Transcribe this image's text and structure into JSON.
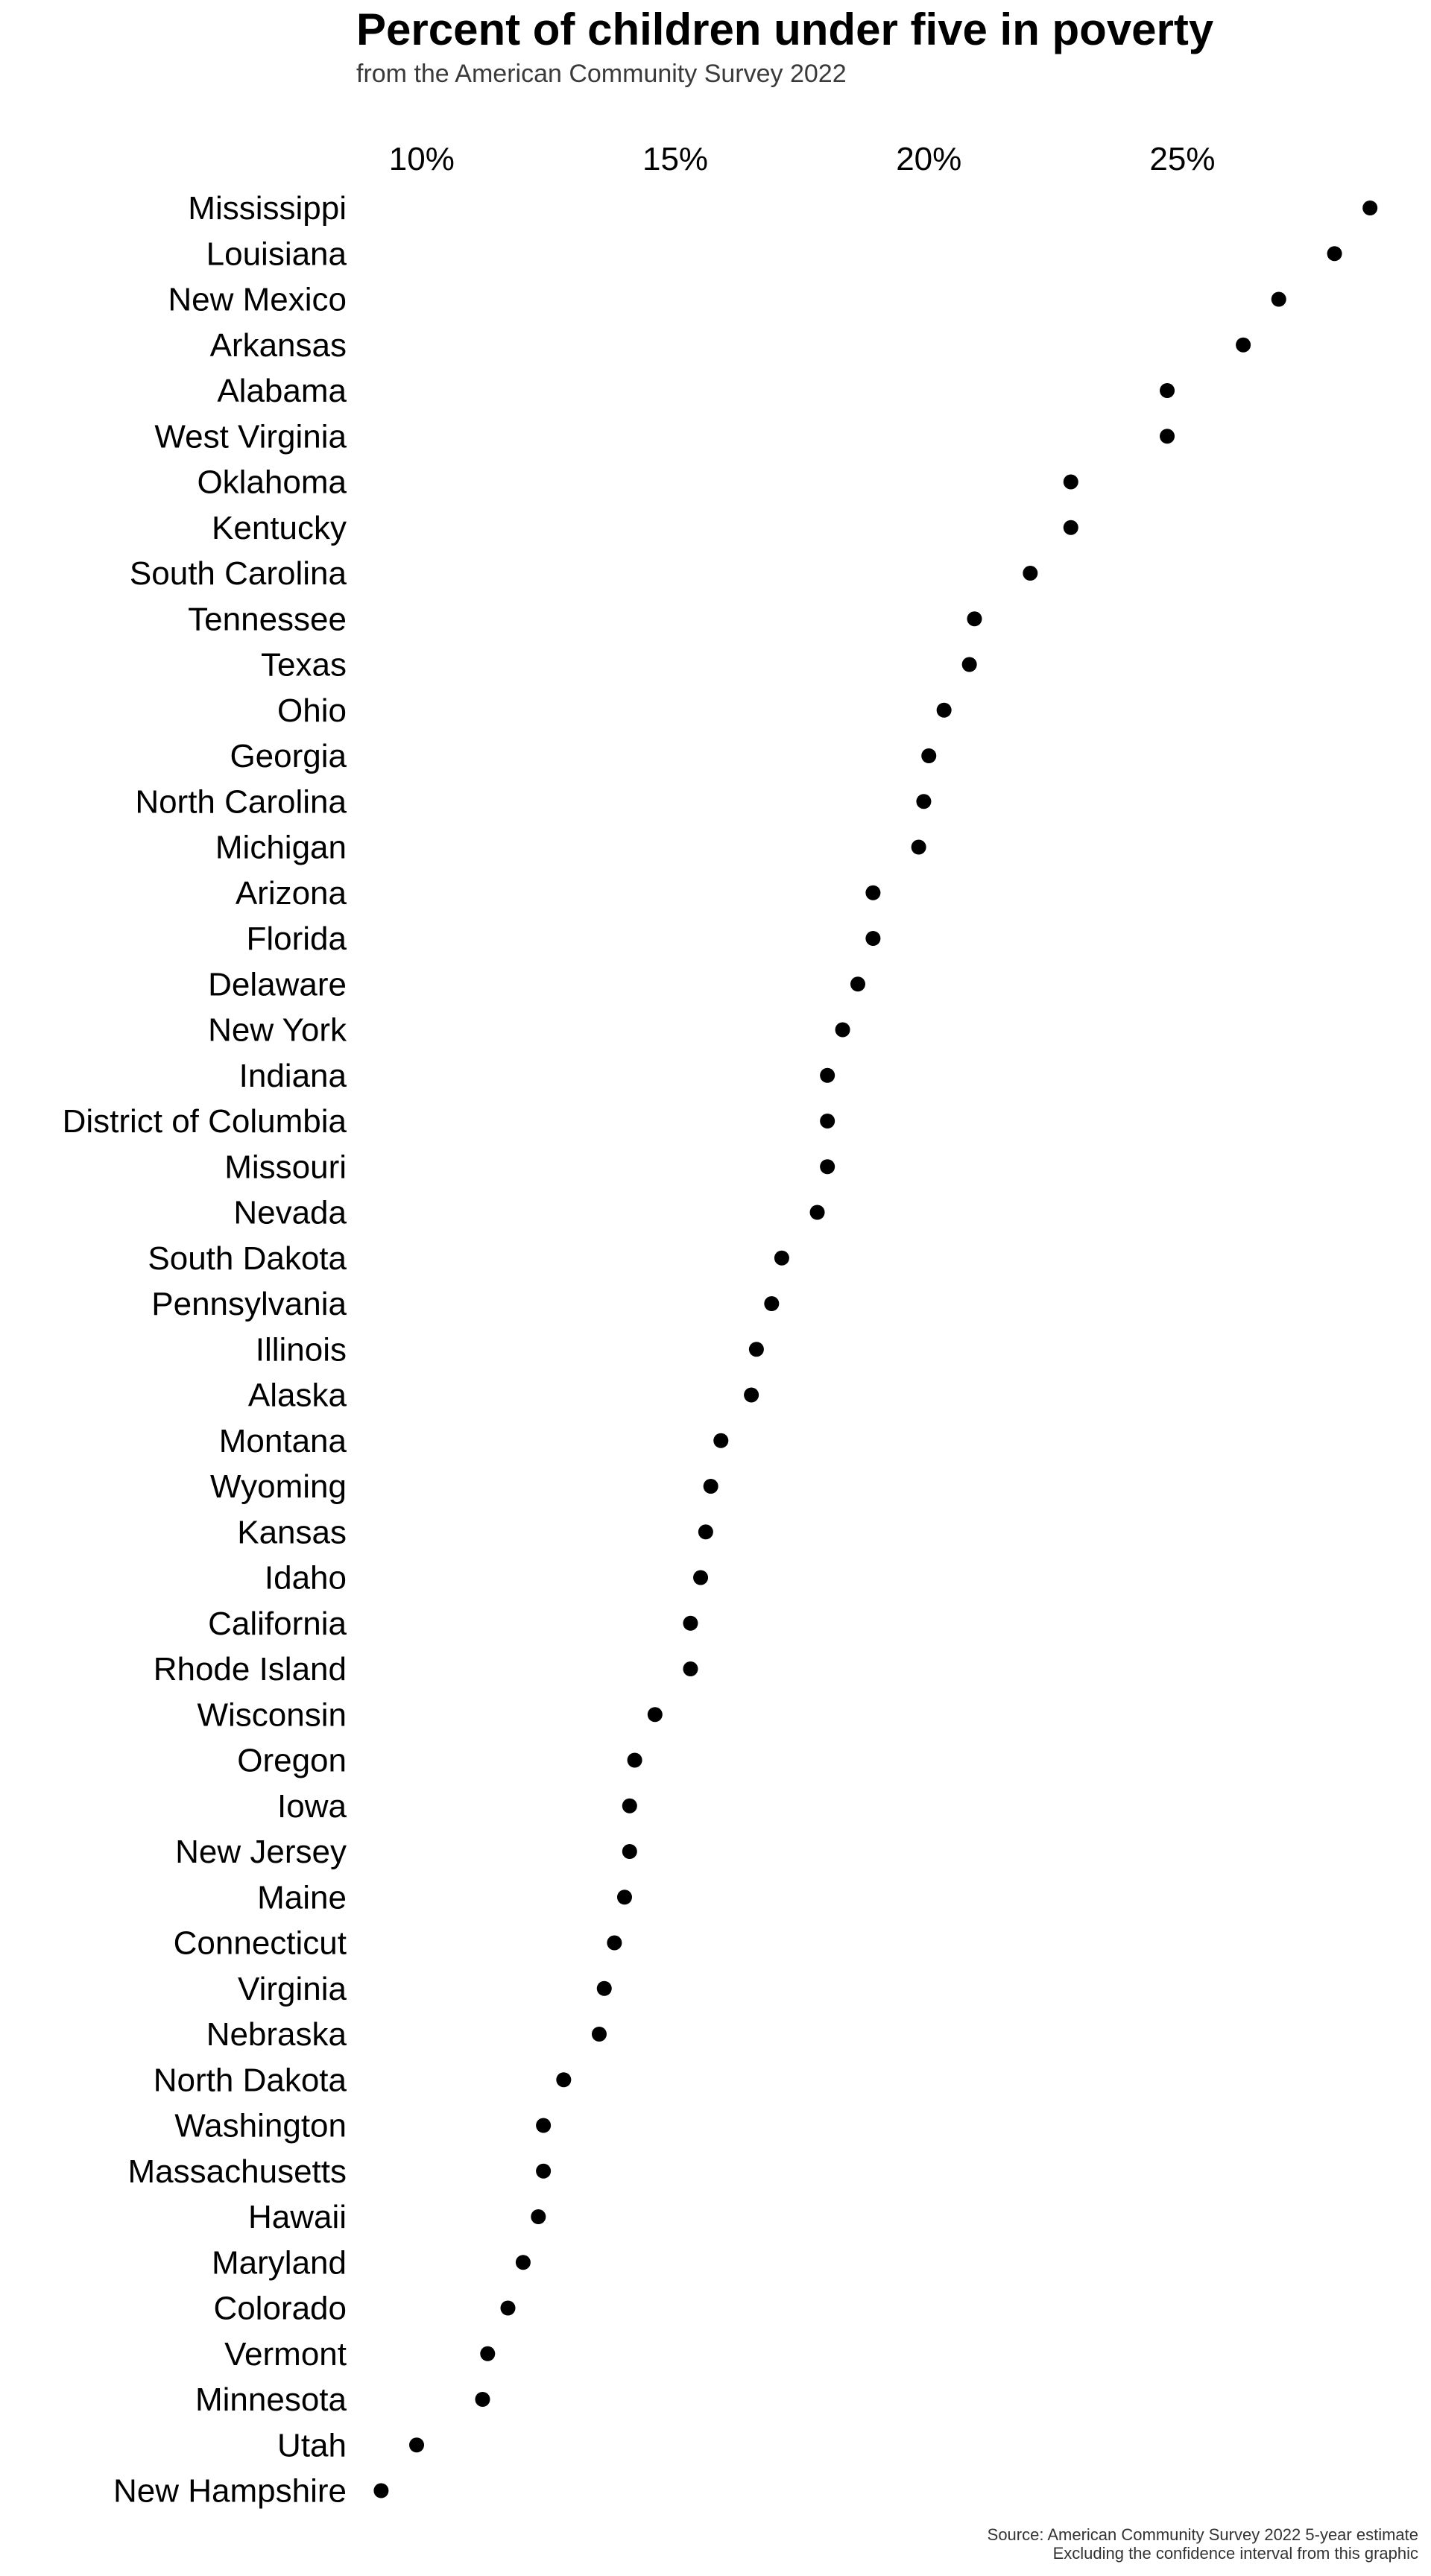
{
  "chart_data": {
    "type": "scatter",
    "title": "Percent of children under five in poverty",
    "subtitle": "from the American Community Survey 2022",
    "x_ticks": [
      10,
      15,
      20,
      25
    ],
    "x_tick_labels": [
      "10%",
      "15%",
      "20%",
      "25%"
    ],
    "xlim": [
      9.4,
      28.8
    ],
    "x_axis_position": "top",
    "grid": false,
    "point_color": "#000000",
    "categories": [
      "Mississippi",
      "Louisiana",
      "New Mexico",
      "Arkansas",
      "Alabama",
      "West Virginia",
      "Oklahoma",
      "Kentucky",
      "South Carolina",
      "Tennessee",
      "Texas",
      "Ohio",
      "Georgia",
      "North Carolina",
      "Michigan",
      "Arizona",
      "Florida",
      "Delaware",
      "New York",
      "Indiana",
      "District of Columbia",
      "Missouri",
      "Nevada",
      "South Dakota",
      "Pennsylvania",
      "Illinois",
      "Alaska",
      "Montana",
      "Wyoming",
      "Kansas",
      "Idaho",
      "California",
      "Rhode Island",
      "Wisconsin",
      "Oregon",
      "Iowa",
      "New Jersey",
      "Maine",
      "Connecticut",
      "Virginia",
      "Nebraska",
      "North Dakota",
      "Washington",
      "Massachusetts",
      "Hawaii",
      "Maryland",
      "Colorado",
      "Vermont",
      "Minnesota",
      "Utah",
      "New Hampshire"
    ],
    "values": [
      28.7,
      28.0,
      26.9,
      26.2,
      24.7,
      24.7,
      22.8,
      22.8,
      22.0,
      20.9,
      20.8,
      20.3,
      20.0,
      19.9,
      19.8,
      18.9,
      18.9,
      18.6,
      18.3,
      18.0,
      18.0,
      18.0,
      17.8,
      17.1,
      16.9,
      16.6,
      16.5,
      15.9,
      15.7,
      15.6,
      15.5,
      15.3,
      15.3,
      14.6,
      14.2,
      14.1,
      14.1,
      14.0,
      13.8,
      13.6,
      13.5,
      12.8,
      12.4,
      12.4,
      12.3,
      12.0,
      11.7,
      11.3,
      11.2,
      9.9,
      9.2
    ],
    "caption_lines": [
      "Source: American Community Survey 2022 5-year estimate",
      "Excluding the confidence interval from this graphic"
    ]
  }
}
